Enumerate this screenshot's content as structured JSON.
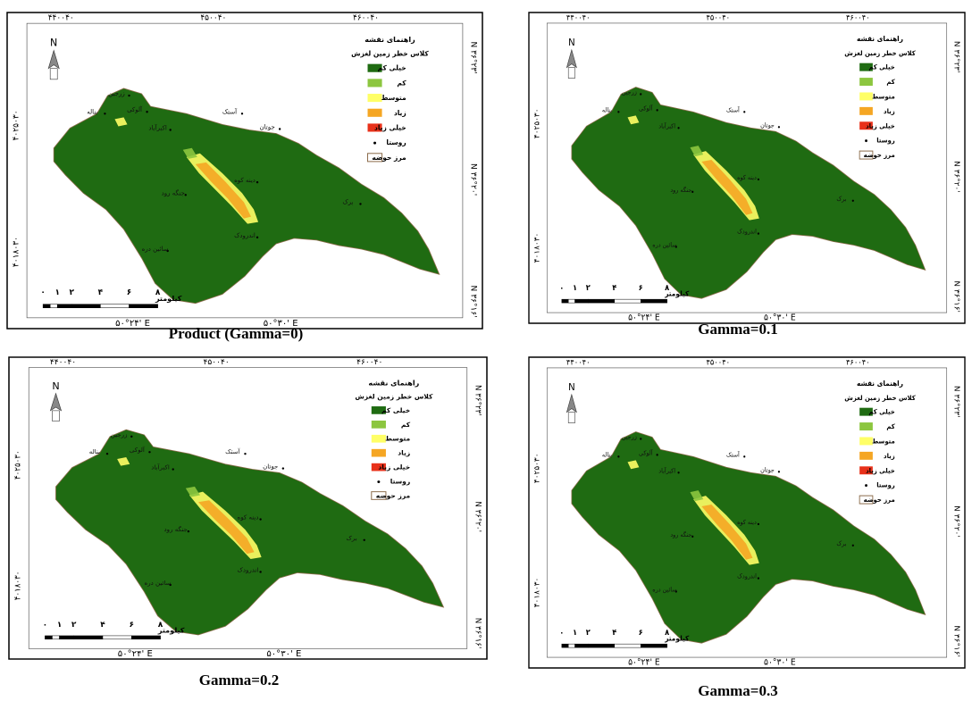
{
  "map_labels": {
    "easting": [
      "۴۴۰۰۴۰",
      "۴۵۰۰۴۰",
      "۴۶۰۰۴۰"
    ],
    "northing": [
      "۴۰۲۵۰۳۰",
      "۴۰۱۸۰۳۰"
    ],
    "latitude": [
      "N ۳۶°۲۳'",
      "N ۳۶°۲۰'",
      "N ۳۶°۱۶'"
    ],
    "longitude": [
      "۵۰°۲۴' E",
      "۵۰°۳۰' E"
    ],
    "north_arrow": "N",
    "legend": {
      "title": "راهنمای نقشه",
      "subtitle": "کلاس خطر زمین لغزش",
      "items": [
        {
          "label": "خیلی کم",
          "color": "#1f6b12"
        },
        {
          "label": "کم",
          "color": "#8cc63f"
        },
        {
          "label": "متوسط",
          "color": "#ffff66"
        },
        {
          "label": "زیاد",
          "color": "#f5a623"
        },
        {
          "label": "خیلی زیاد",
          "color": "#e8311a"
        },
        {
          "label": "روستا",
          "color": "#000000"
        },
        {
          "label": "مرز حوضه",
          "color": "#8b6b4a"
        }
      ]
    },
    "scale_bar": {
      "ticks": [
        "۰",
        "۱",
        "۲",
        "۴",
        "۶",
        "۸"
      ],
      "unit": "کیلومتر"
    },
    "villages": [
      "زرجین",
      "بناله",
      "آلوکی",
      "اکبرآباد",
      "آستک",
      "جوتان",
      "دینه کوه",
      "جنگه رود",
      "برک",
      "اندرودک",
      "سائین دره"
    ]
  },
  "panels": [
    {
      "caption": "Product (Gamma=0)"
    },
    {
      "caption": "Gamma=0.1"
    },
    {
      "caption": "Gamma=0.2"
    },
    {
      "caption": "Gamma=0.3"
    }
  ]
}
